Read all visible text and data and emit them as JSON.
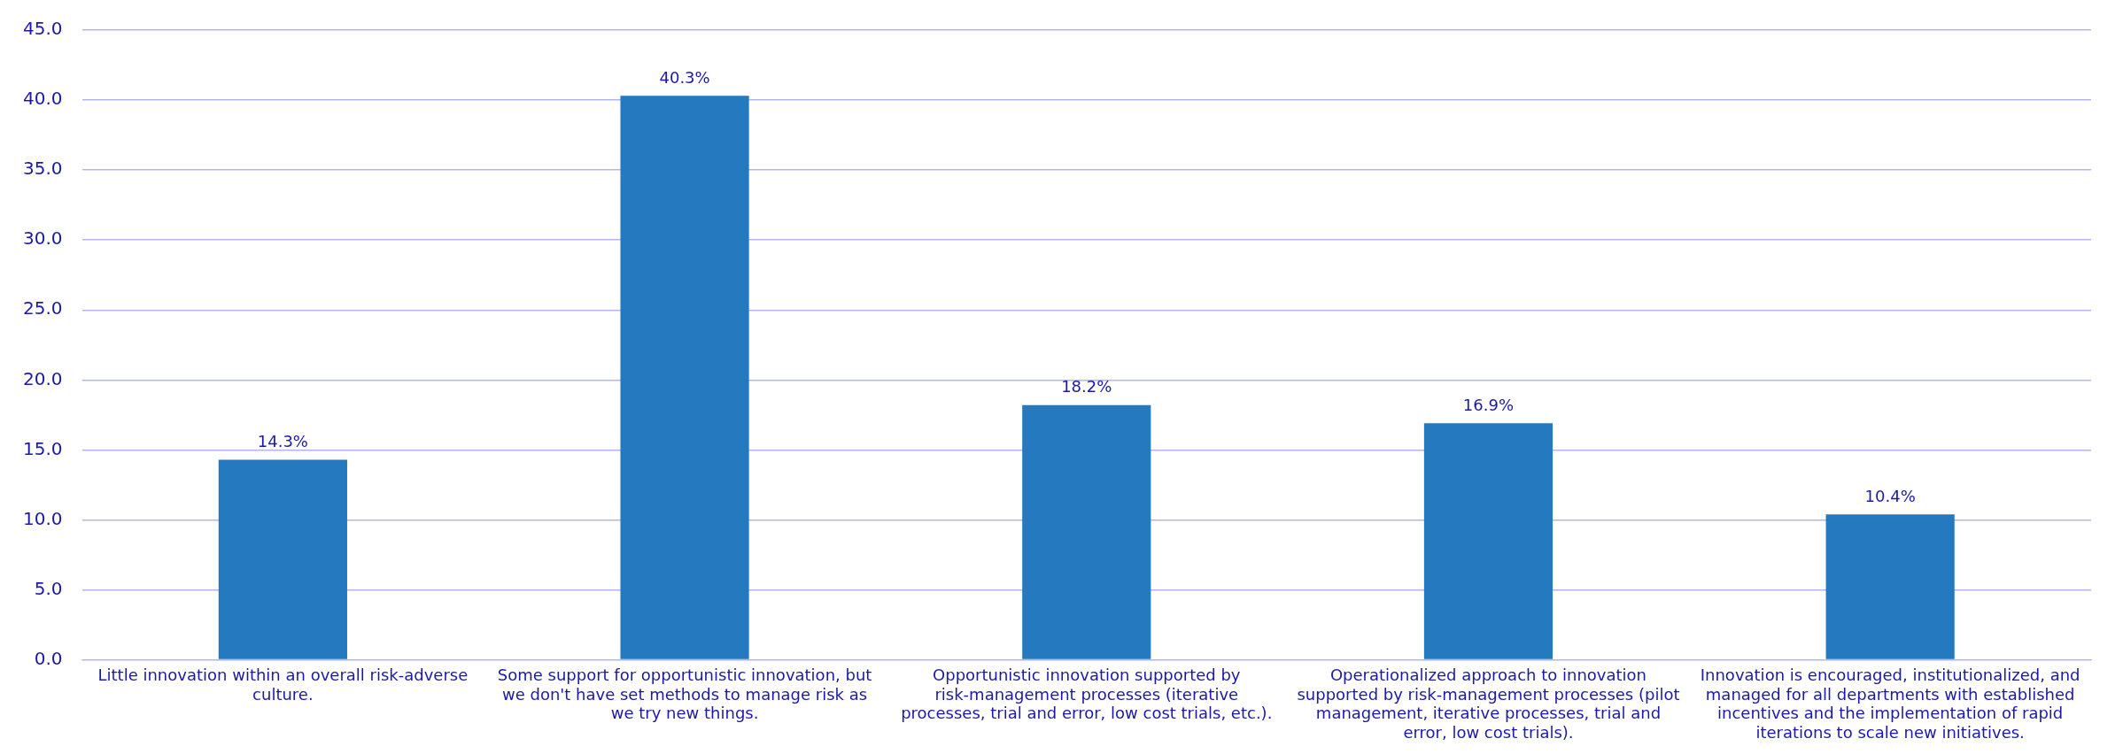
{
  "chart_data": {
    "type": "bar",
    "categories": [
      "Little innovation within an overall risk-adverse culture.",
      "Some support for opportunistic innovation, but we don't have set methods to manage risk as we try new things.",
      "Opportunistic innovation supported by risk-management processes (iterative processes, trial and error, low cost trials, etc.).",
      "Operationalized approach to innovation supported by risk-management processes (pilot management, iterative processes, trial and error, low cost trials).",
      "Innovation is encouraged, institutionalized, and managed for all departments with established incentives and the implementation of rapid iterations to scale new initiatives."
    ],
    "values": [
      14.3,
      40.3,
      18.2,
      16.9,
      10.4
    ],
    "value_labels": [
      "14.3%",
      "40.3%",
      "18.2%",
      "16.9%",
      "10.4%"
    ],
    "color": "#2479bf",
    "ylim": [
      0,
      45
    ],
    "yticks": [
      {
        "value": 0,
        "label": "0.0"
      },
      {
        "value": 5,
        "label": "5.0"
      },
      {
        "value": 10,
        "label": "10.0"
      },
      {
        "value": 15,
        "label": "15.0"
      },
      {
        "value": 20,
        "label": "20.0"
      },
      {
        "value": 25,
        "label": "25.0"
      },
      {
        "value": 30,
        "label": "30.0"
      },
      {
        "value": 35,
        "label": "35.0"
      },
      {
        "value": 40,
        "label": "40.0"
      },
      {
        "value": 45,
        "label": "45.0"
      }
    ],
    "grid": "y",
    "legend": false
  }
}
